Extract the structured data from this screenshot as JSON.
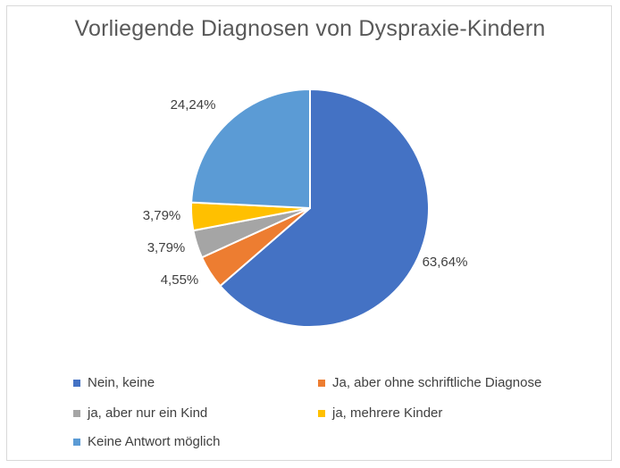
{
  "chart_data": {
    "type": "pie",
    "title": "Vorliegende Diagnosen von Dyspraxie-Kindern",
    "series": [
      {
        "name": "Nein, keine",
        "value": 63.64,
        "label": "63,64%",
        "color": "#4472c4"
      },
      {
        "name": "Ja, aber ohne schriftliche Diagnose",
        "value": 4.55,
        "label": "4,55%",
        "color": "#ed7d31"
      },
      {
        "name": "ja, aber nur ein Kind",
        "value": 3.79,
        "label": "3,79%",
        "color": "#a5a5a5"
      },
      {
        "name": "ja, mehrere Kinder",
        "value": 3.79,
        "label": "3,79%",
        "color": "#ffc000"
      },
      {
        "name": "Keine Antwort möglich",
        "value": 24.24,
        "label": "24,24%",
        "color": "#5b9bd5"
      }
    ],
    "legend_position": "bottom"
  }
}
